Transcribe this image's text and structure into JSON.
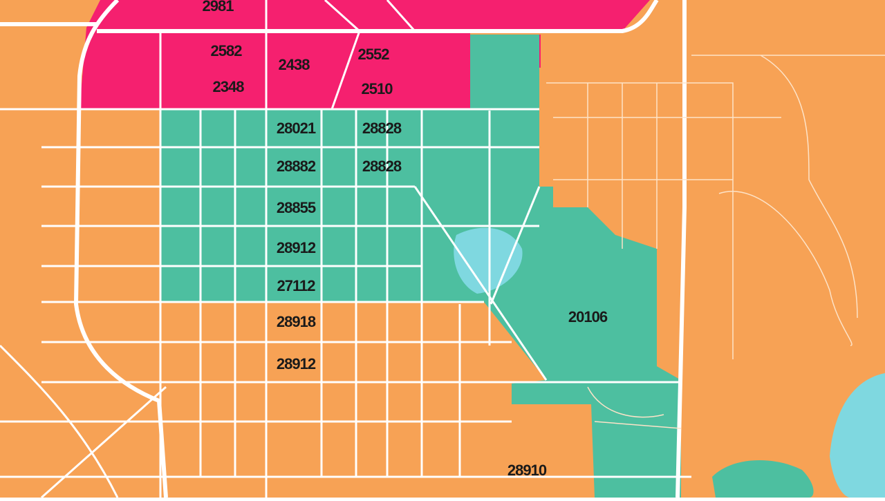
{
  "map": {
    "labels": [
      {
        "text": "2981"
      },
      {
        "text": "2582"
      },
      {
        "text": "2348"
      },
      {
        "text": "2438"
      },
      {
        "text": "2552"
      },
      {
        "text": "2510"
      },
      {
        "text": "28021"
      },
      {
        "text": "28828"
      },
      {
        "text": "28882"
      },
      {
        "text": "28828"
      },
      {
        "text": "28855"
      },
      {
        "text": "28912"
      },
      {
        "text": "27112"
      },
      {
        "text": "20106"
      },
      {
        "text": "28918"
      },
      {
        "text": "28912"
      },
      {
        "text": "28910"
      }
    ]
  }
}
